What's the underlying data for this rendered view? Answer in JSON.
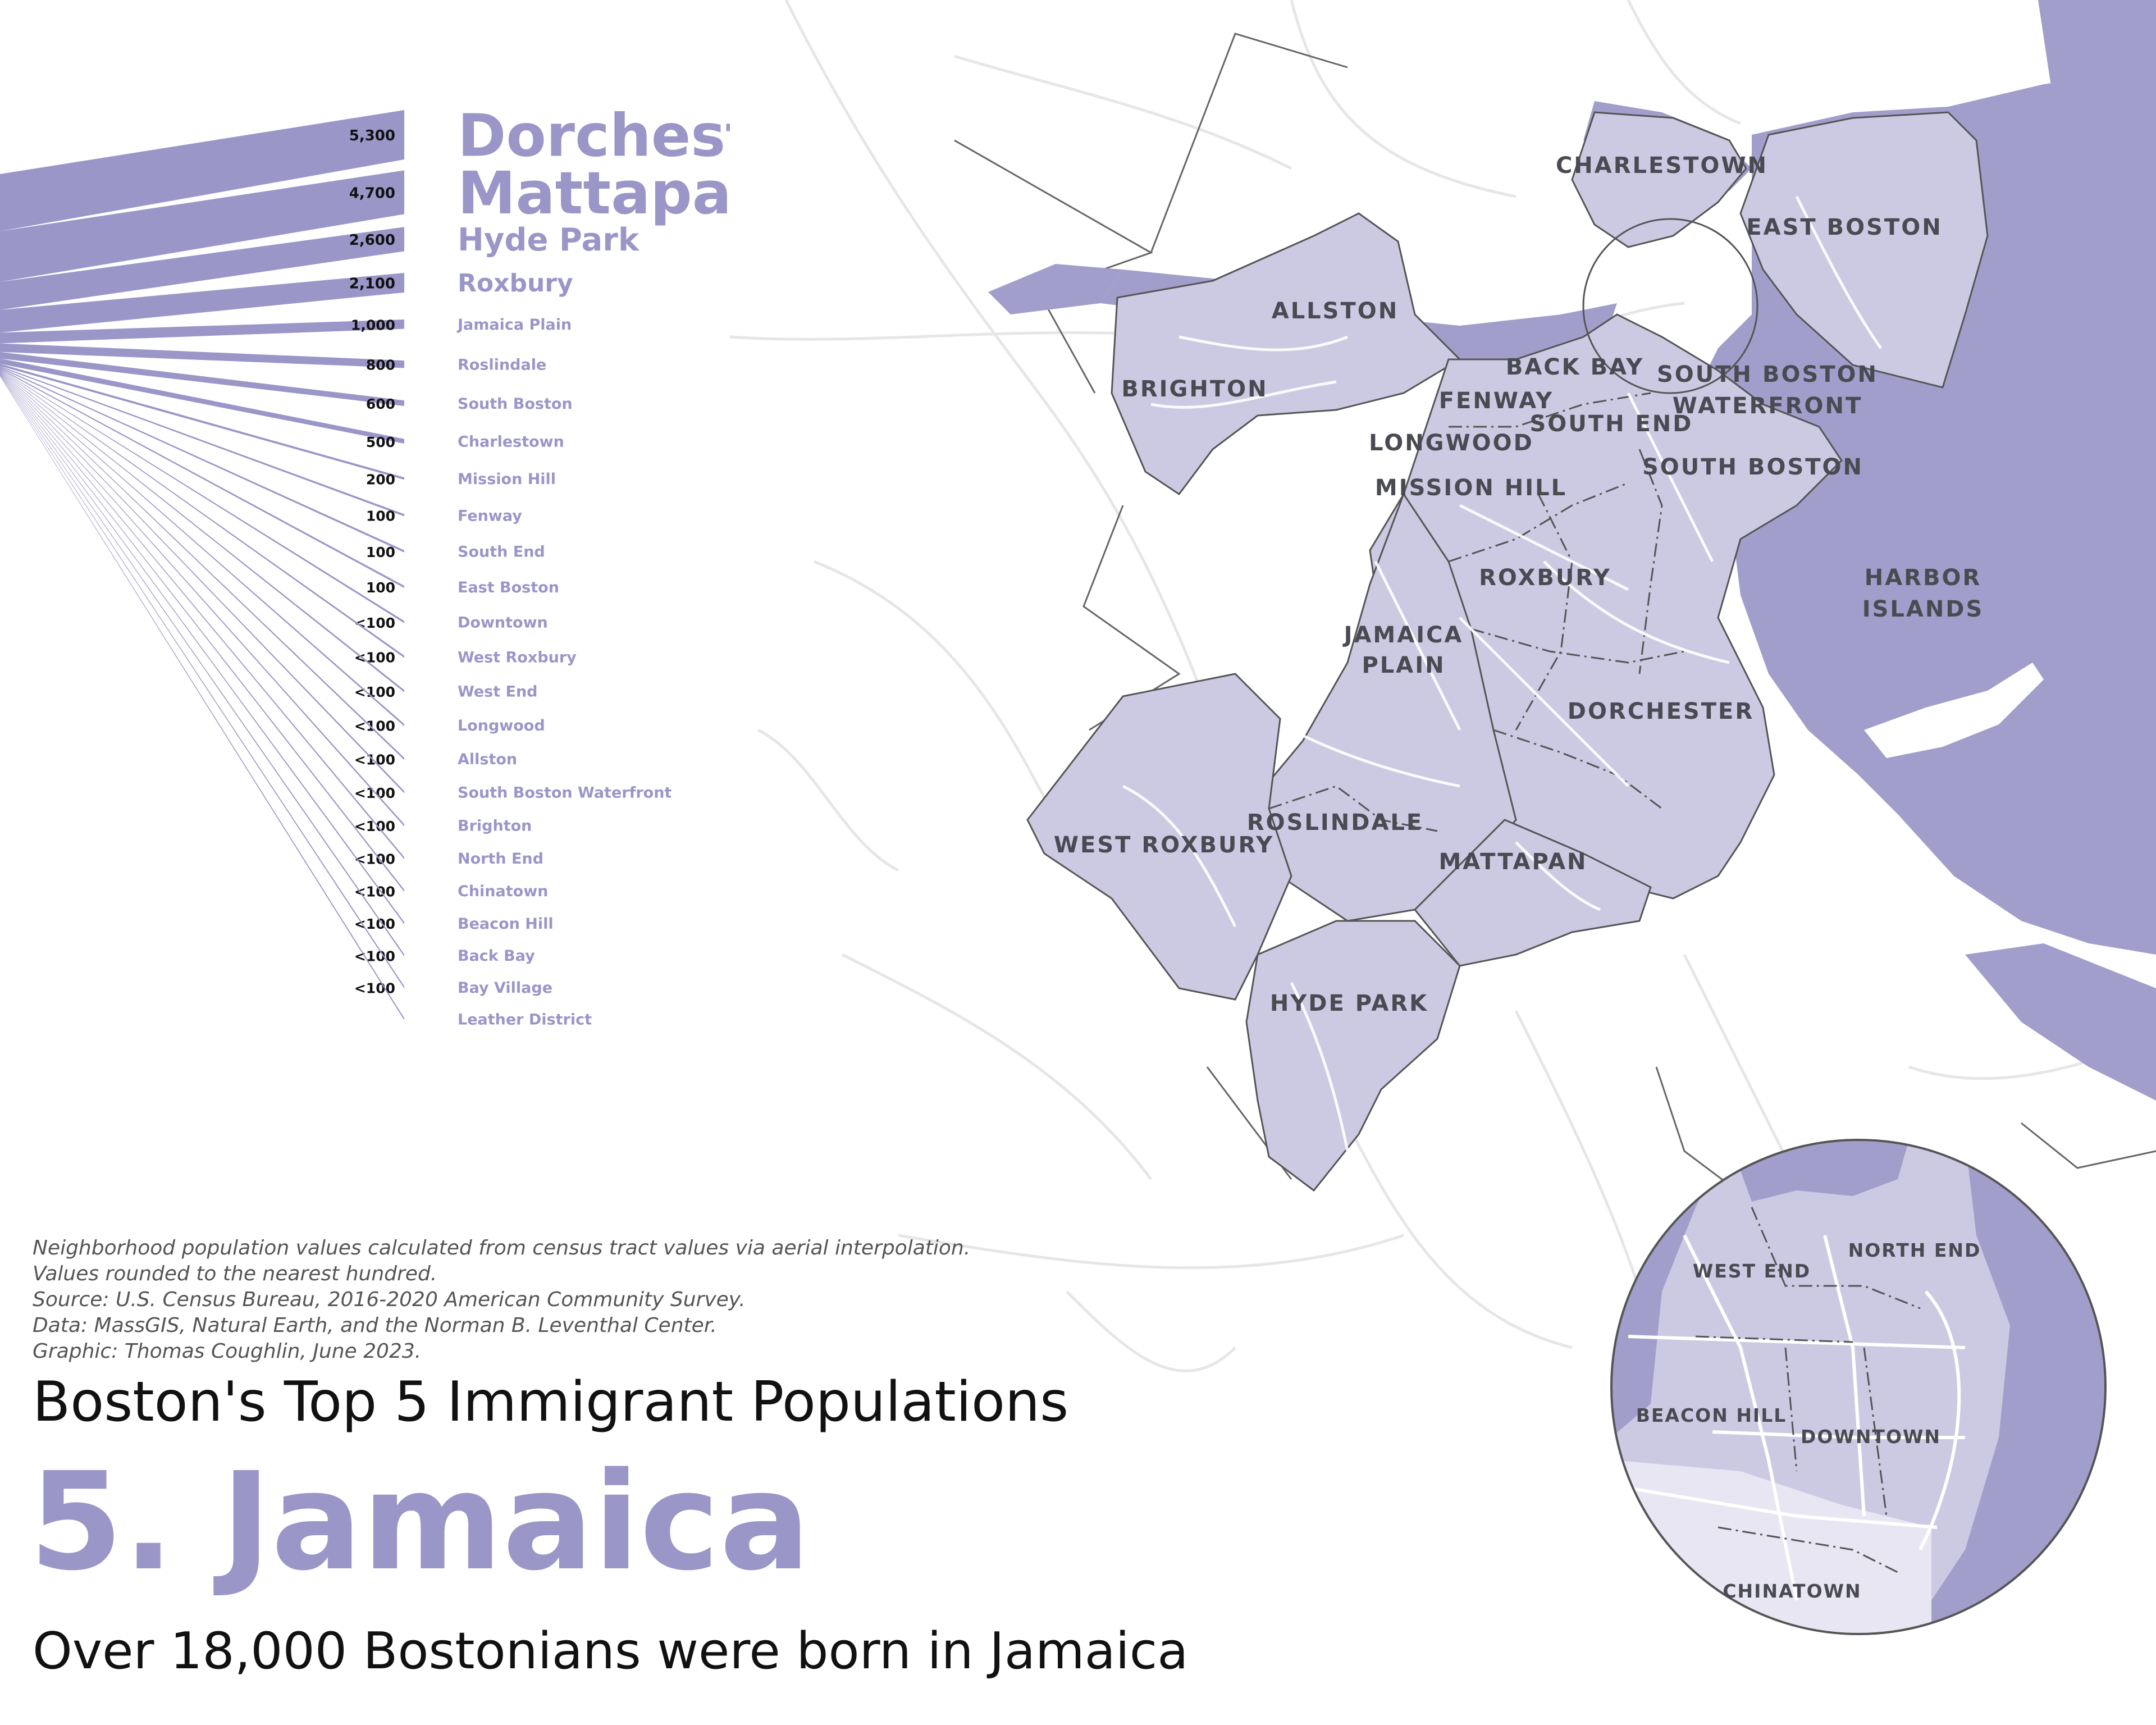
{
  "title": "Boston's Top 5 Immigrant Populations",
  "headline": "5. Jamaica",
  "subtitle": "Over 18,000 Bostonians were born in Jamaica",
  "notes": [
    "Neighborhood population values calculated from census tract values via aerial interpolation.",
    "Values rounded to the nearest hundred.",
    "Source: U.S. Census Bureau, 2016-2020 American Community Survey.",
    "Data: MassGIS, Natural Earth, and the Norman B. Leventhal Center.",
    "Graphic: Thomas Coughlin, June 2023."
  ],
  "colors": {
    "accent": "#9b96c8",
    "fill_neighborhood": "#ccc9e3",
    "fill_water": "#a29ecb",
    "road": "#e6e6e6"
  },
  "chart_data": {
    "type": "bar",
    "categories": [
      "Dorchester",
      "Mattapan",
      "Hyde Park",
      "Roxbury",
      "Jamaica Plain",
      "Roslindale",
      "South Boston",
      "Charlestown",
      "Mission Hill",
      "Fenway",
      "South End",
      "East Boston",
      "Downtown",
      "West Roxbury",
      "West End",
      "Longwood",
      "Allston",
      "South Boston Waterfront",
      "Brighton",
      "North End",
      "Chinatown",
      "Beacon Hill",
      "Back Bay",
      "Bay Village",
      "Leather District"
    ],
    "values": [
      5300,
      4700,
      2600,
      2100,
      1000,
      800,
      600,
      500,
      200,
      100,
      100,
      100,
      50,
      50,
      50,
      50,
      50,
      50,
      50,
      50,
      50,
      50,
      50,
      50,
      50
    ],
    "value_labels": [
      "5,300",
      "4,700",
      "2,600",
      "2,100",
      "1,000",
      "800",
      "600",
      "500",
      "200",
      "100",
      "100",
      "100",
      "<100",
      "<100",
      "<100",
      "<100",
      "<100",
      "<100",
      "<100",
      "<100",
      "<100",
      "<100",
      "<100",
      "<100",
      ""
    ]
  },
  "map": {
    "labels": [
      "CHARLESTOWN",
      "EAST BOSTON",
      "ALLSTON",
      "BRIGHTON",
      "BACK BAY",
      "SOUTH BOSTON",
      "WATERFRONT",
      "FENWAY",
      "SOUTH END",
      "LONGWOOD",
      "MISSION HILL",
      "SOUTH BOSTON",
      "HARBOR",
      "ISLANDS",
      "ROXBURY",
      "JAMAICA",
      "PLAIN",
      "DORCHESTER",
      "WEST ROXBURY",
      "ROSLINDALE",
      "MATTAPAN",
      "HYDE PARK"
    ],
    "inset_labels": [
      "WEST END",
      "NORTH END",
      "BEACON HILL",
      "DOWNTOWN",
      "CHINATOWN"
    ]
  }
}
